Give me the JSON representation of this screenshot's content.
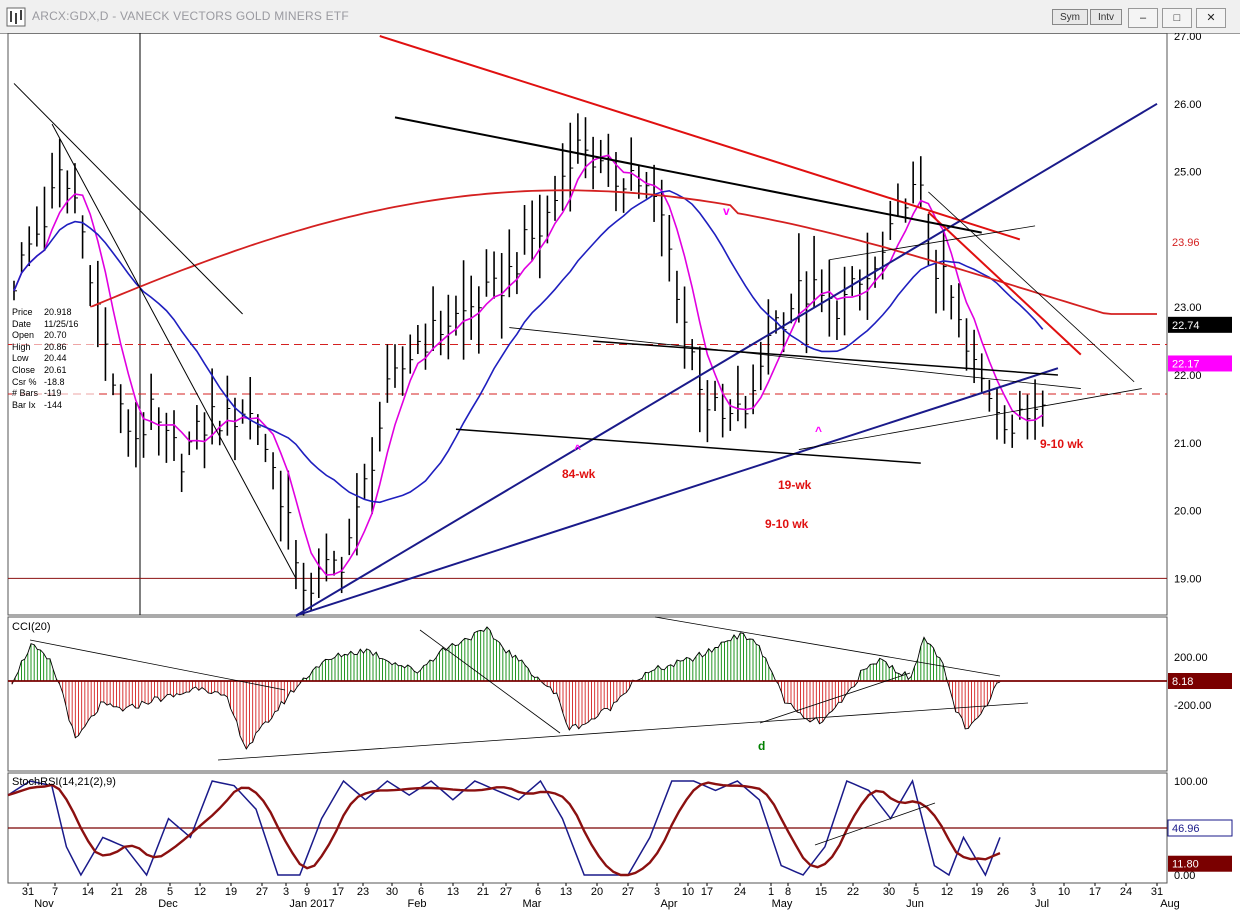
{
  "window": {
    "title": "ARCX:GDX,D - VANECK VECTORS GOLD MINERS ETF",
    "sym_button": "Sym",
    "intv_button": "Intv",
    "buttons": [
      "minimize",
      "restore",
      "close"
    ]
  },
  "info_panel": [
    {
      "label": "Price",
      "value": "20.918"
    },
    {
      "label": "Date",
      "value": "11/25/16"
    },
    {
      "label": "Open",
      "value": "20.70"
    },
    {
      "label": "High",
      "value": "20.86"
    },
    {
      "label": "Low",
      "value": "20.44"
    },
    {
      "label": "Close",
      "value": "20.61"
    },
    {
      "label": "Csr %",
      "value": "-18.8"
    },
    {
      "label": "# Bars",
      "value": "-119"
    },
    {
      "label": "Bar Ix",
      "value": "-144"
    }
  ],
  "chart_data": [
    {
      "type": "bar",
      "panel": "price",
      "title": "ARCX:GDX,D - VANECK VECTORS GOLD MINERS ETF",
      "ylim": [
        18.5,
        27.0
      ],
      "yticks": [
        "27.00",
        "26.00",
        "25.00",
        "24.00",
        "23.00",
        "22.00",
        "21.00",
        "20.00",
        "19.00"
      ],
      "last_value_boxes": [
        {
          "value": "23.96",
          "color": "#d42020"
        },
        {
          "value": "22.74",
          "color": "#000000"
        },
        {
          "value": "22.17",
          "color": "#ff00ff"
        }
      ],
      "annotations": [
        {
          "text": "84-wk",
          "color": "#e01010"
        },
        {
          "text": "19-wk",
          "color": "#e01010"
        },
        {
          "text": "9-10 wk",
          "color": "#e01010"
        },
        {
          "text": "9-10 wk",
          "color": "#e01010"
        },
        {
          "text": "^",
          "color": "#ff00ff"
        },
        {
          "text": "v",
          "color": "#ff00ff"
        },
        {
          "text": "^",
          "color": "#ff00ff"
        }
      ],
      "horizontal_lines": [
        {
          "value": 22.45,
          "style": "dashed",
          "color": "#d42020"
        },
        {
          "value": 21.72,
          "style": "dashed",
          "color": "#d42020"
        },
        {
          "value": 19.0,
          "style": "solid",
          "color": "#8b1010"
        }
      ],
      "series": [
        {
          "name": "",
          "color": "#000000",
          "style": "ohlc"
        },
        {
          "name": "",
          "color": "#e000e0",
          "style": "line"
        },
        {
          "name": "",
          "color": "#1f1fbf",
          "style": "line"
        },
        {
          "name": "",
          "color": "#d42020",
          "style": "line"
        }
      ]
    },
    {
      "type": "bar",
      "panel": "cci",
      "title": "CCI(20)",
      "yticks": [
        "200.00",
        "-200.00"
      ],
      "last_value_box": {
        "value": "8.18",
        "color": "#7a0000"
      },
      "annotations": [
        {
          "text": "d",
          "color": "#008000"
        }
      ]
    },
    {
      "type": "line",
      "panel": "stochrsi",
      "title": "StochRSI(14,21(2),9)",
      "yticks": [
        "100.00",
        "0.00"
      ],
      "last_value_boxes": [
        {
          "value": "46.96",
          "color": "#1a1a8a"
        },
        {
          "value": "11.80",
          "color": "#7a0000"
        }
      ]
    }
  ],
  "x_axis": {
    "day_labels": [
      "31",
      "7",
      "14",
      "21",
      "28",
      "5",
      "12",
      "19",
      "27",
      "3",
      "9",
      "17",
      "23",
      "30",
      "6",
      "13",
      "21",
      "27",
      "6",
      "13",
      "20",
      "27",
      "3",
      "10",
      "17",
      "24",
      "1",
      "8",
      "15",
      "22",
      "30",
      "5",
      "12",
      "19",
      "26",
      "3",
      "10",
      "17",
      "24",
      "31"
    ],
    "month_labels": [
      "Nov",
      "Dec",
      "Jan 2017",
      "Feb",
      "Mar",
      "Apr",
      "May",
      "Jun",
      "Jul",
      "Aug"
    ]
  }
}
